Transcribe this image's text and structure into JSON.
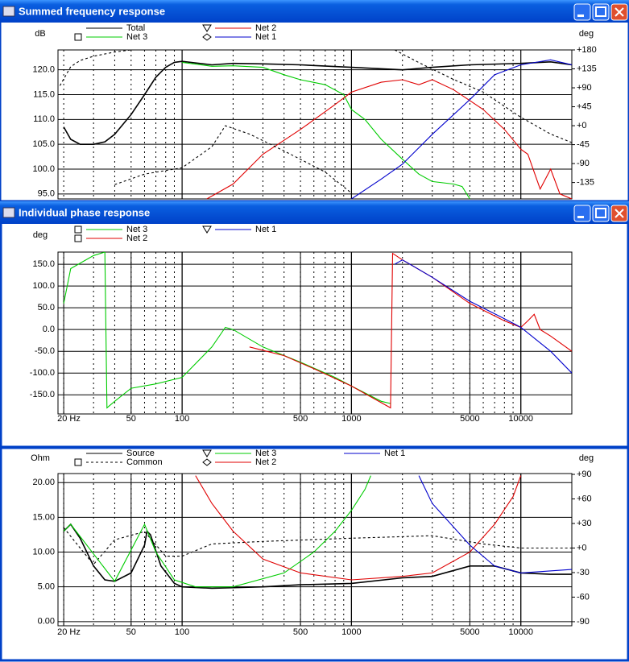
{
  "windows": [
    {
      "title": "Summed frequency response"
    },
    {
      "title": "Individual phase response"
    }
  ],
  "chart_data": [
    {
      "type": "line",
      "xscale": "log",
      "grid": true,
      "ylabel": "dB",
      "y2label": "deg",
      "xlim": [
        18.5,
        20000
      ],
      "ylim": [
        94,
        124
      ],
      "yticks": [
        {
          "value": 95,
          "label": "95.0"
        },
        {
          "value": 100,
          "label": "100.0"
        },
        {
          "value": 105,
          "label": "105.0"
        },
        {
          "value": 110,
          "label": "110.0"
        },
        {
          "value": 115,
          "label": "115.0"
        },
        {
          "value": 120,
          "label": "120.0"
        }
      ],
      "y2lim": [
        -174,
        180
      ],
      "y2ticks": [
        -135,
        -90,
        -45,
        {
          "value": 0,
          "label": "+0"
        },
        {
          "value": 45,
          "label": "+45"
        },
        {
          "value": 90,
          "label": "+90"
        },
        {
          "value": 135,
          "label": "+135"
        },
        {
          "value": 180,
          "label": "+180"
        }
      ],
      "series": [
        {
          "name": "Total",
          "color": "#000000",
          "marker": "none",
          "x": [
            20,
            22,
            25,
            30,
            35,
            40,
            50,
            60,
            70,
            80,
            90,
            100,
            150,
            200,
            300,
            500,
            1000,
            2000,
            3000,
            5000,
            10000,
            15000,
            20000
          ],
          "values": [
            108.5,
            106,
            105,
            105,
            105.5,
            107,
            111,
            115,
            118.5,
            120.5,
            121.5,
            121.7,
            121,
            121.3,
            121.2,
            121,
            120.5,
            120,
            120.5,
            121,
            121.3,
            121.6,
            121
          ]
        },
        {
          "name": "Net 3",
          "color": "#00cc00",
          "marker": "square",
          "x": [
            100,
            150,
            200,
            300,
            400,
            500,
            700,
            900,
            1000,
            1200,
            1500,
            2000,
            2500,
            3000,
            4000,
            4500,
            5000
          ],
          "values": [
            121.5,
            120.7,
            120.8,
            120.5,
            119,
            118,
            117,
            115,
            112,
            110,
            106,
            102,
            99,
            97.5,
            97,
            96.5,
            94
          ]
        },
        {
          "name": "Net 2",
          "color": "#e00000",
          "marker": "triangle",
          "x": [
            140,
            200,
            300,
            500,
            800,
            1000,
            1500,
            2000,
            2500,
            3000,
            4000,
            6000,
            8000,
            10000,
            11000,
            13000,
            15000,
            17000,
            20000
          ],
          "values": [
            94,
            97,
            103,
            108,
            113,
            115.5,
            117.5,
            118,
            117,
            118,
            116,
            112,
            108,
            104,
            103,
            96,
            100,
            95,
            94
          ]
        },
        {
          "name": "Net 1",
          "color": "#0000cc",
          "marker": "diamond",
          "x": [
            1000,
            1500,
            2000,
            3000,
            5000,
            7000,
            10000,
            15000,
            20000
          ],
          "values": [
            94,
            98,
            101,
            107,
            114,
            119,
            121,
            122,
            121
          ]
        },
        {
          "color": "#000000",
          "dashed": true,
          "axis": "y2",
          "x": [
            19,
            22,
            25,
            30,
            40,
            50
          ],
          "values": [
            95,
            140,
            155,
            165,
            175,
            180
          ]
        },
        {
          "color": "#000000",
          "dashed": true,
          "axis": "y2",
          "x": [
            40,
            60,
            100,
            150,
            180,
            250,
            400,
            700,
            1000
          ],
          "values": [
            -140,
            -115,
            -100,
            -50,
            0,
            -20,
            -60,
            -110,
            -160
          ]
        },
        {
          "color": "#000000",
          "dashed": true,
          "axis": "y2",
          "x": [
            1800,
            2500,
            4000,
            6000,
            10000,
            15000,
            20000
          ],
          "values": [
            180,
            150,
            110,
            80,
            20,
            -20,
            -40
          ]
        }
      ]
    },
    {
      "type": "line",
      "xscale": "log",
      "grid": true,
      "ylabel": "deg",
      "xlim": [
        18.5,
        20000
      ],
      "ylim": [
        -194,
        178
      ],
      "xticks": [
        {
          "value": 20,
          "label": "20 Hz"
        },
        50,
        100,
        500,
        1000,
        5000,
        10000
      ],
      "yticks": [
        {
          "value": -150,
          "label": "-150.0"
        },
        {
          "value": -100,
          "label": "-100.0"
        },
        {
          "value": -50,
          "label": "-50.0"
        },
        {
          "value": 0,
          "label": "0.0"
        },
        {
          "value": 50,
          "label": "50.0"
        },
        {
          "value": 100,
          "label": "100.0"
        },
        {
          "value": 150,
          "label": "150.0"
        }
      ],
      "series": [
        {
          "name": "Net 3",
          "color": "#00cc00",
          "marker": "square",
          "x": [
            20,
            22,
            30,
            35,
            36,
            40,
            50,
            70,
            100,
            150,
            180,
            200,
            300,
            500,
            800,
            1000,
            1500,
            1700
          ],
          "values": [
            60,
            140,
            170,
            178,
            -180,
            -165,
            -135,
            -125,
            -110,
            -40,
            5,
            0,
            -40,
            -75,
            -110,
            -130,
            -165,
            -170
          ]
        },
        {
          "name": "Net 2",
          "color": "#e00000",
          "marker": "square",
          "x": [
            250,
            400,
            600,
            1000,
            1700,
            1750,
            2000,
            3000,
            5000,
            8000,
            10000,
            11000,
            12000,
            13000,
            15000,
            20000
          ],
          "values": [
            -40,
            -60,
            -90,
            -130,
            -180,
            175,
            160,
            120,
            60,
            20,
            5,
            20,
            35,
            0,
            -15,
            -50
          ]
        },
        {
          "name": "Net 1",
          "color": "#0000cc",
          "marker": "triangle",
          "x": [
            1800,
            2000,
            3000,
            5000,
            8000,
            10000,
            15000,
            20000
          ],
          "values": [
            150,
            160,
            120,
            65,
            25,
            5,
            -50,
            -100
          ]
        }
      ]
    },
    {
      "type": "line",
      "xscale": "log",
      "grid": true,
      "ylabel": "Ohm",
      "y2label": "deg",
      "xlim": [
        18.5,
        20000
      ],
      "ylim": [
        -0.6,
        21.3
      ],
      "xticks": [
        {
          "value": 20,
          "label": "20 Hz"
        },
        50,
        100,
        500,
        1000,
        5000,
        10000
      ],
      "yticks": [
        {
          "value": 0,
          "label": "0.00"
        },
        {
          "value": 5,
          "label": "5.00"
        },
        {
          "value": 10,
          "label": "10.00"
        },
        {
          "value": 15,
          "label": "15.00"
        },
        {
          "value": 20,
          "label": "20.00"
        }
      ],
      "y2lim": [
        -95,
        91
      ],
      "y2ticks": [
        -90,
        -60,
        -30,
        {
          "value": 0,
          "label": "+0"
        },
        {
          "value": 30,
          "label": "+30"
        },
        {
          "value": 60,
          "label": "+60"
        },
        {
          "value": 90,
          "label": "+90"
        }
      ],
      "series": [
        {
          "name": "Source",
          "color": "#000000",
          "marker": "none",
          "x": [
            20,
            22,
            25,
            30,
            35,
            40,
            50,
            60,
            62,
            65,
            75,
            90,
            100,
            150,
            300,
            500,
            1000,
            2000,
            3000,
            5000,
            7000,
            10000,
            15000,
            20000
          ],
          "values": [
            13,
            14,
            12,
            8,
            6,
            5.8,
            7,
            11,
            13,
            12.5,
            8,
            5.5,
            5,
            4.8,
            5,
            5.3,
            5.5,
            6.3,
            6.5,
            8,
            8,
            7,
            6.8,
            6.8
          ]
        },
        {
          "name": "Common",
          "color": "#000000",
          "marker": "square",
          "dashed": true,
          "axis": "y2",
          "x": [
            20,
            25,
            30,
            40,
            60,
            80,
            100,
            150,
            300,
            1000,
            3000,
            6000,
            10000,
            20000
          ],
          "values": [
            25,
            0,
            -20,
            10,
            20,
            -10,
            -10,
            5,
            8,
            12,
            15,
            5,
            0,
            0
          ]
        },
        {
          "name": "Net 3",
          "color": "#00cc00",
          "marker": "triangle",
          "x": [
            20,
            22,
            40,
            60,
            70,
            90,
            120,
            200,
            400,
            600,
            800,
            1000,
            1200,
            1300
          ],
          "values": [
            13,
            14,
            5.8,
            14,
            10,
            6,
            5,
            5,
            7,
            10,
            13,
            16,
            19,
            21
          ]
        },
        {
          "name": "Net 2",
          "color": "#e00000",
          "marker": "diamond",
          "x": [
            120,
            150,
            200,
            300,
            500,
            1000,
            2000,
            3000,
            5000,
            7000,
            9000,
            10000
          ],
          "values": [
            21,
            17,
            13,
            9,
            7,
            6,
            6.5,
            7,
            10,
            14,
            18,
            21
          ]
        },
        {
          "name": "Net 1",
          "color": "#0000cc",
          "marker": "none",
          "x": [
            2500,
            3000,
            5000,
            7000,
            10000,
            20000
          ],
          "values": [
            21,
            17,
            11,
            8,
            7,
            7.5
          ]
        }
      ]
    }
  ]
}
